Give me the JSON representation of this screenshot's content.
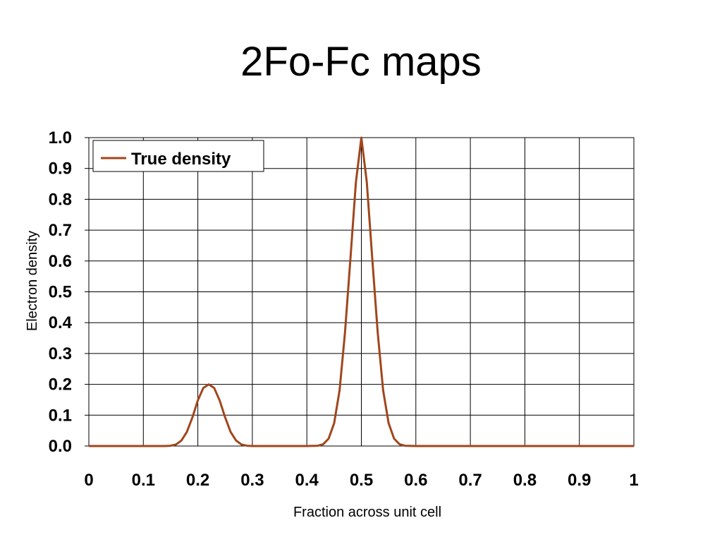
{
  "slide": {
    "title": "2Fo-Fc maps"
  },
  "colors": {
    "series": "#a0461c",
    "grid": "#000000",
    "background": "#ffffff"
  },
  "chart_data": {
    "type": "line",
    "title": "",
    "xlabel": "Fraction across unit cell",
    "ylabel": "Electron density",
    "xlim": [
      0,
      1
    ],
    "ylim": [
      0,
      1.0
    ],
    "x_ticks": [
      0,
      0.1,
      0.2,
      0.3,
      0.4,
      0.5,
      0.6,
      0.7,
      0.8,
      0.9,
      1
    ],
    "x_tick_labels": [
      "0",
      "0.1",
      "0.2",
      "0.3",
      "0.4",
      "0.5",
      "0.6",
      "0.7",
      "0.8",
      "0.9",
      "1"
    ],
    "y_ticks": [
      0.0,
      0.1,
      0.2,
      0.3,
      0.4,
      0.5,
      0.6,
      0.7,
      0.8,
      0.9,
      1.0
    ],
    "y_tick_labels": [
      "0.0",
      "0.1",
      "0.2",
      "0.3",
      "0.4",
      "0.5",
      "0.6",
      "0.7",
      "0.8",
      "0.9",
      "1.0"
    ],
    "grid": true,
    "legend_position": "top-left",
    "series": [
      {
        "name": "True density",
        "x": [
          0,
          0.1,
          0.14,
          0.15,
          0.16,
          0.17,
          0.18,
          0.19,
          0.2,
          0.21,
          0.22,
          0.23,
          0.24,
          0.25,
          0.26,
          0.27,
          0.28,
          0.29,
          0.3,
          0.4,
          0.42,
          0.43,
          0.44,
          0.45,
          0.46,
          0.47,
          0.48,
          0.49,
          0.5,
          0.51,
          0.52,
          0.53,
          0.54,
          0.55,
          0.56,
          0.57,
          0.58,
          0.6,
          0.7,
          0.8,
          0.9,
          1
        ],
        "y": [
          0,
          0,
          0,
          0.001,
          0.005,
          0.018,
          0.046,
          0.093,
          0.148,
          0.188,
          0.2,
          0.188,
          0.148,
          0.093,
          0.046,
          0.018,
          0.005,
          0.001,
          0,
          0,
          0.001,
          0.006,
          0.024,
          0.074,
          0.18,
          0.368,
          0.607,
          0.856,
          1.0,
          0.856,
          0.607,
          0.368,
          0.18,
          0.074,
          0.024,
          0.006,
          0.001,
          0,
          0,
          0,
          0,
          0
        ]
      }
    ]
  }
}
